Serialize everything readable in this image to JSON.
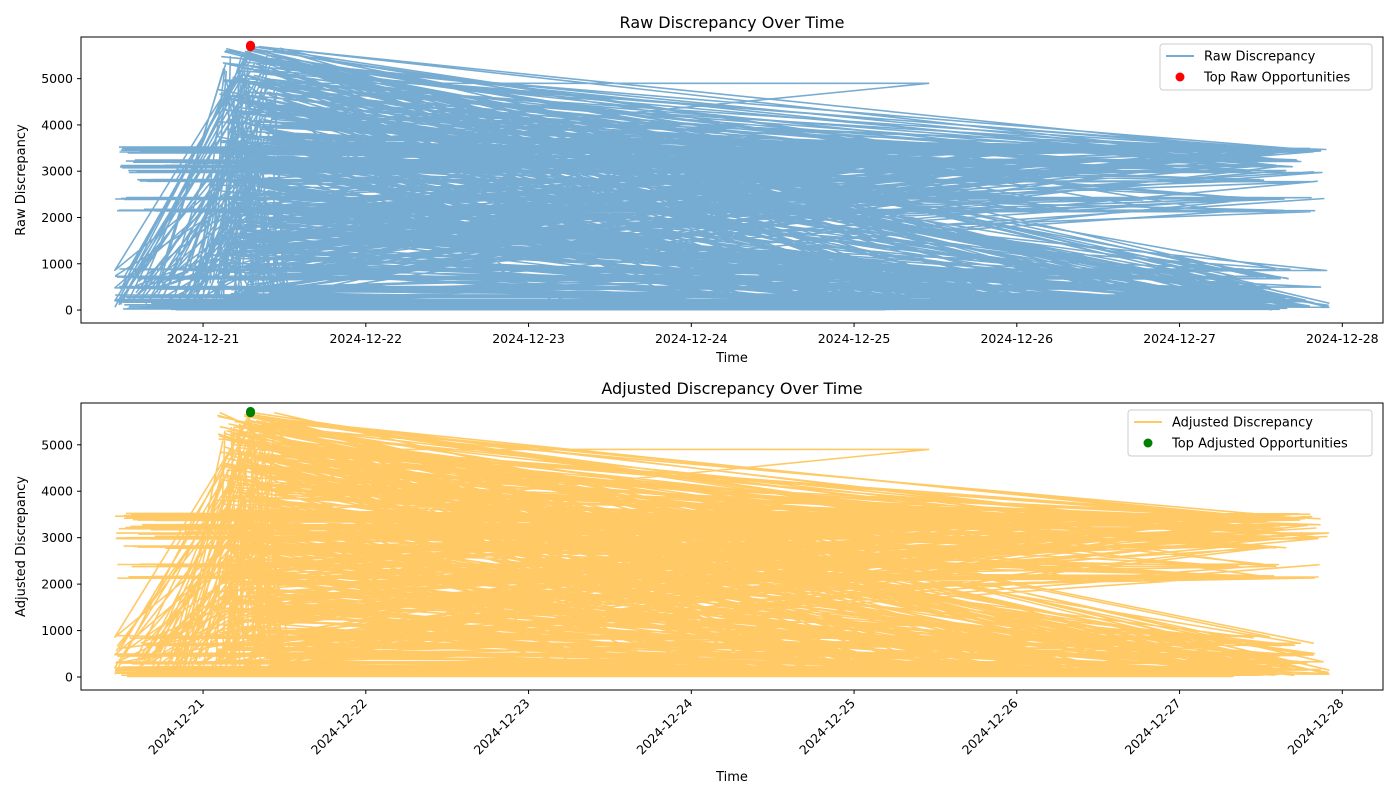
{
  "chart_data": [
    {
      "type": "line",
      "title": "Raw Discrepancy Over Time",
      "xlabel": "Time",
      "ylabel": "Raw Discrepancy",
      "xlim": [
        "2024-12-20 06:00",
        "2024-12-28 06:00"
      ],
      "ylim": [
        -280,
        5900
      ],
      "x_ticks": [
        "2024-12-21",
        "2024-12-22",
        "2024-12-23",
        "2024-12-24",
        "2024-12-25",
        "2024-12-26",
        "2024-12-27",
        "2024-12-28"
      ],
      "y_ticks": [
        0,
        1000,
        2000,
        3000,
        4000,
        5000
      ],
      "x_tick_rotation": 0,
      "grid": false,
      "legend": "top-right",
      "line_color": "#77acd2",
      "marker_color": "#ff0000",
      "series": [
        {
          "name": "Raw Discrepancy",
          "kind": "line",
          "x": [
            "2024-12-20 11:00",
            "2024-12-21 07:00",
            "2024-12-25 11:00",
            "2024-12-21 07:00",
            "2024-12-27 22:00",
            "2024-12-21 07:00",
            "2024-12-20 11:00",
            "2024-12-21 07:00",
            "2024-12-25 11:00",
            "2024-12-21 07:00",
            "2024-12-26 08:00",
            "2024-12-21 07:00",
            "2024-12-20 20:00",
            "2024-12-25 11:00",
            "2024-12-21 07:00",
            "2024-12-27 16:00",
            "2024-12-21 07:00",
            "2024-12-20 11:00",
            "2024-12-25 11:00",
            "2024-12-21 07:00",
            "2024-12-27 22:00",
            "2024-12-20 11:00",
            "2024-12-21 07:00",
            "2024-12-25 11:00",
            "2024-12-21 07:00",
            "2024-12-27 22:00"
          ],
          "y": [
            60,
            5700,
            3500,
            5650,
            150,
            5600,
            860,
            3250,
            3200,
            5500,
            2150,
            5400,
            2800,
            2400,
            4500,
            300,
            3000,
            480,
            300,
            5650,
            60,
            200,
            4900,
            4900,
            3450,
            100
          ]
        },
        {
          "name": "Top Raw Opportunities",
          "kind": "scatter",
          "x": [
            "2024-12-21 07:00",
            "2024-12-21 07:00",
            "2024-12-21 07:00"
          ],
          "y": [
            5720,
            5700,
            5690
          ]
        }
      ]
    },
    {
      "type": "line",
      "title": "Adjusted Discrepancy Over Time",
      "xlabel": "Time",
      "ylabel": "Adjusted Discrepancy",
      "xlim": [
        "2024-12-20 06:00",
        "2024-12-28 06:00"
      ],
      "ylim": [
        -280,
        5900
      ],
      "x_ticks": [
        "2024-12-21",
        "2024-12-22",
        "2024-12-23",
        "2024-12-24",
        "2024-12-25",
        "2024-12-26",
        "2024-12-27",
        "2024-12-28"
      ],
      "y_ticks": [
        0,
        1000,
        2000,
        3000,
        4000,
        5000
      ],
      "x_tick_rotation": -45,
      "grid": false,
      "legend": "top-right",
      "line_color": "#ffc966",
      "marker_color": "#008000",
      "series": [
        {
          "name": "Adjusted Discrepancy",
          "kind": "line",
          "x": [
            "2024-12-20 11:00",
            "2024-12-21 07:00",
            "2024-12-25 11:00",
            "2024-12-21 07:00",
            "2024-12-27 22:00",
            "2024-12-21 07:00",
            "2024-12-20 11:00",
            "2024-12-21 07:00",
            "2024-12-25 11:00",
            "2024-12-21 07:00",
            "2024-12-26 08:00",
            "2024-12-21 07:00",
            "2024-12-20 20:00",
            "2024-12-25 11:00",
            "2024-12-21 07:00",
            "2024-12-27 16:00",
            "2024-12-21 07:00",
            "2024-12-20 11:00",
            "2024-12-25 11:00",
            "2024-12-21 07:00",
            "2024-12-27 22:00",
            "2024-12-20 11:00",
            "2024-12-21 07:00",
            "2024-12-25 11:00",
            "2024-12-21 07:00",
            "2024-12-27 22:00"
          ],
          "y": [
            60,
            5700,
            3500,
            5650,
            150,
            5600,
            860,
            3250,
            3200,
            5500,
            2150,
            5400,
            2800,
            2400,
            4500,
            300,
            3000,
            480,
            300,
            5650,
            60,
            200,
            4900,
            4900,
            3450,
            100
          ]
        },
        {
          "name": "Top Adjusted Opportunities",
          "kind": "scatter",
          "x": [
            "2024-12-21 07:00",
            "2024-12-21 07:00",
            "2024-12-21 07:00"
          ],
          "y": [
            5720,
            5700,
            5690
          ]
        }
      ]
    }
  ]
}
